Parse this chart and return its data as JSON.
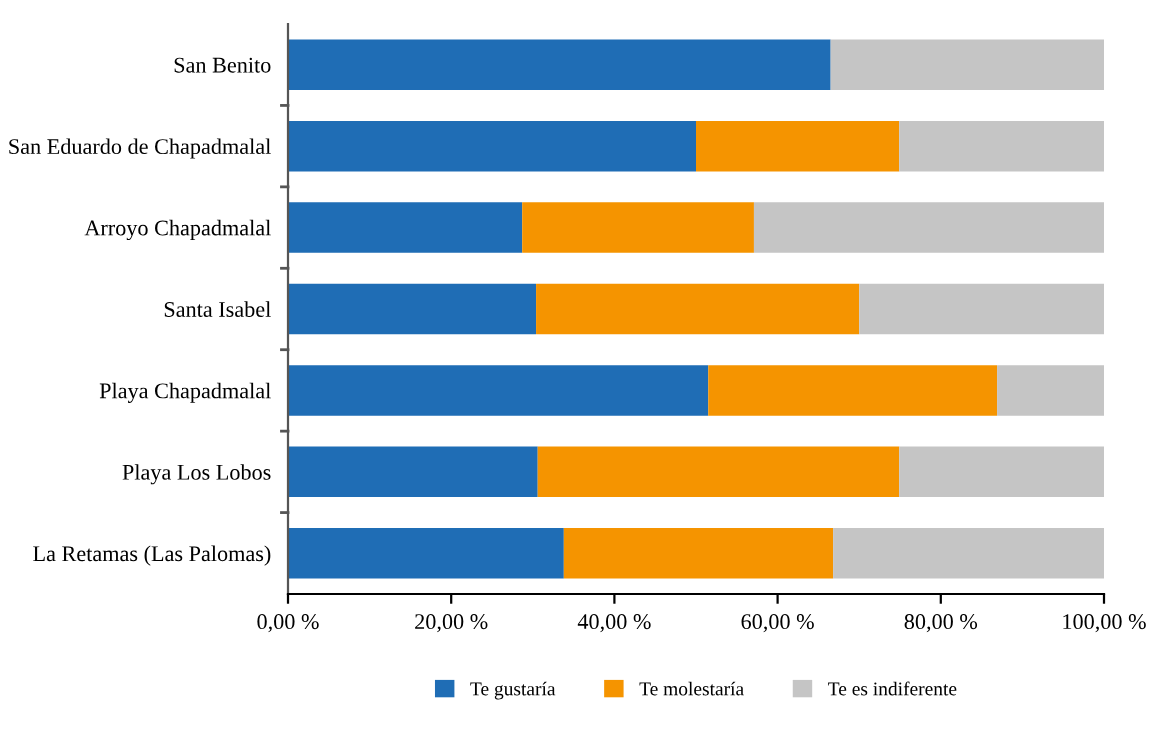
{
  "chart_data": {
    "type": "bar",
    "orientation": "horizontal",
    "stacked": true,
    "categories": [
      "San Benito",
      "San Eduardo de Chapadmalal",
      "Arroyo Chapadmalal",
      "Santa Isabel",
      "Playa Chapadmalal",
      "Playa Los Lobos",
      "La Retamas (Las Palomas)"
    ],
    "series": [
      {
        "name": "Te gustaría",
        "color": "#1f6db5",
        "values": [
          66.5,
          50.0,
          28.7,
          30.4,
          51.5,
          30.6,
          33.8
        ]
      },
      {
        "name": "Te molestaría",
        "color": "#f59400",
        "values": [
          0,
          24.9,
          28.4,
          39.6,
          35.4,
          44.3,
          33.0
        ]
      },
      {
        "name": "Te es indiferente",
        "color": "#c5c5c5",
        "values": [
          33.5,
          25.1,
          42.9,
          30.0,
          13.1,
          25.1,
          33.2
        ]
      }
    ],
    "xlim": [
      0,
      100
    ],
    "xticks": [
      {
        "value": 0,
        "label": "0,00 %"
      },
      {
        "value": 20,
        "label": "20,00 %"
      },
      {
        "value": 40,
        "label": "40,00 %"
      },
      {
        "value": 60,
        "label": "60,00 %"
      },
      {
        "value": 80,
        "label": "80,00 %"
      },
      {
        "value": 100,
        "label": "100,00 %"
      }
    ],
    "grid": false,
    "legend": "bottom"
  }
}
